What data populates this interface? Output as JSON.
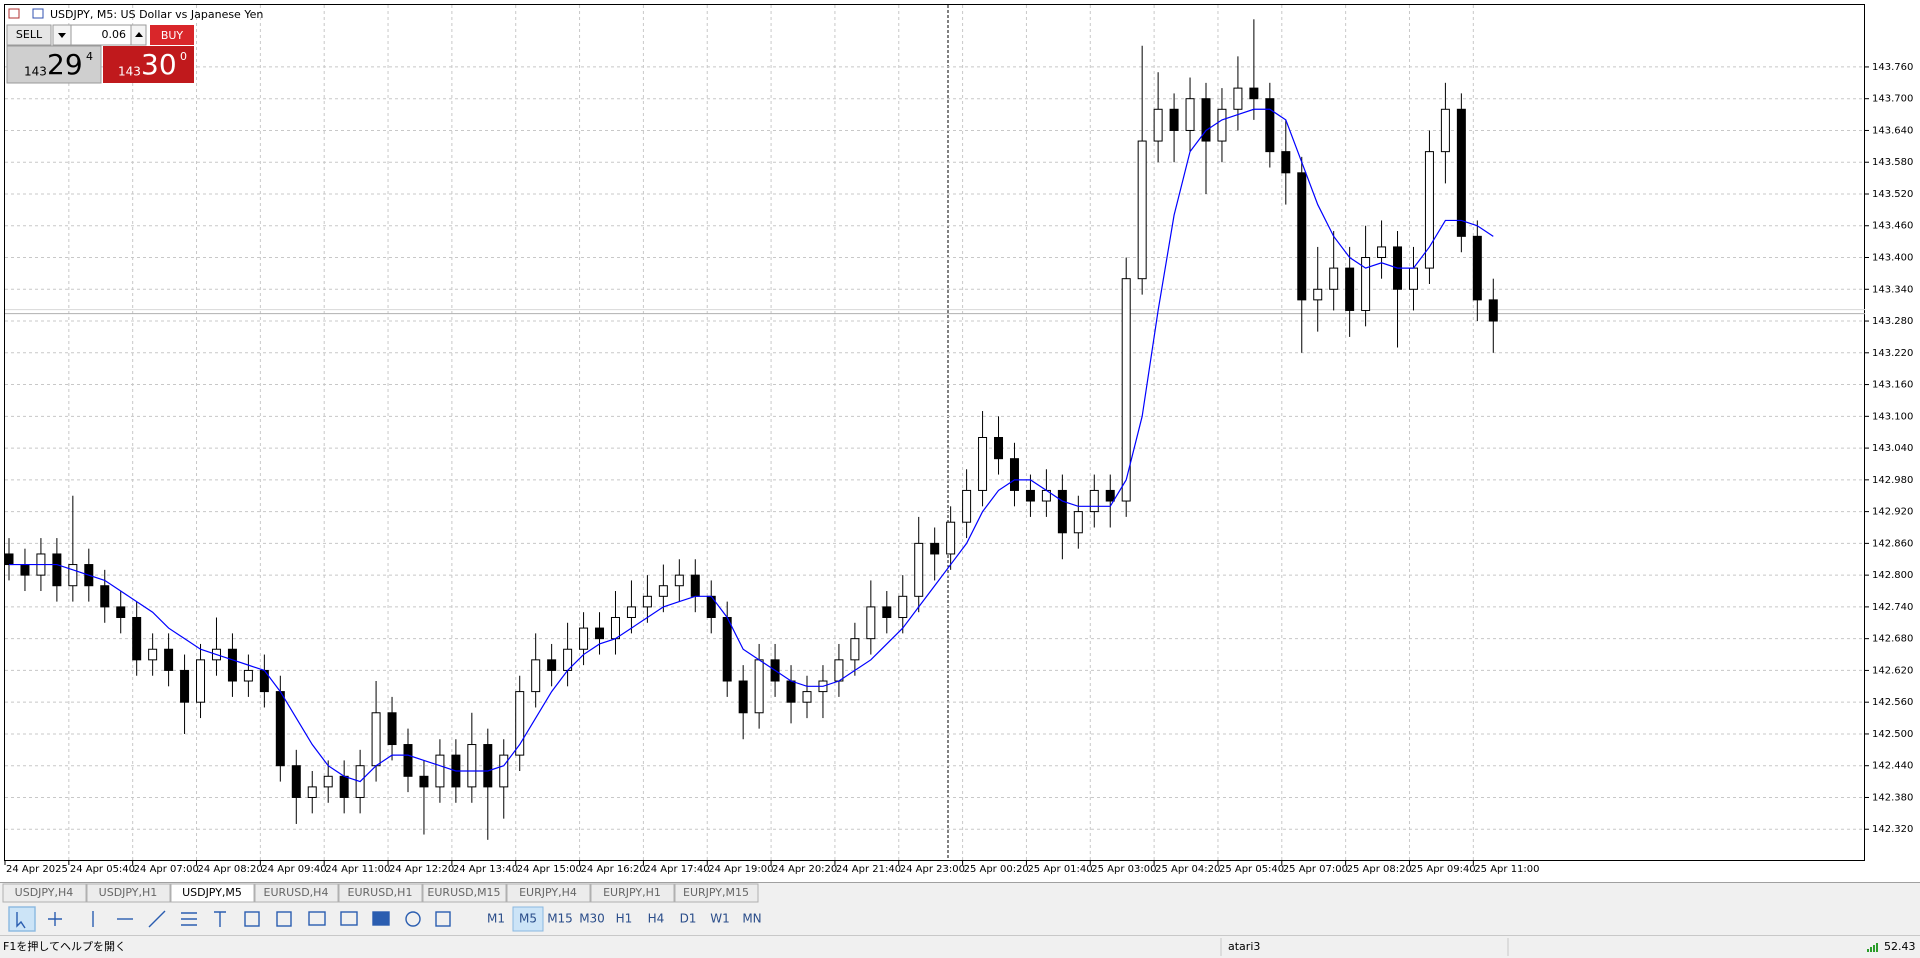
{
  "window": {
    "title": "USDJPY, M5:  US Dollar vs Japanese Yen"
  },
  "trade_panel": {
    "sell": "SELL",
    "buy": "BUY",
    "volume": "0.06",
    "sell_prefix": "143",
    "sell_main": "29",
    "sell_sup": "4",
    "buy_prefix": "143",
    "buy_main": "30",
    "buy_sup": "0"
  },
  "chart_data": {
    "type": "candlestick",
    "categories": [
      "24 Apr 2025",
      null,
      null,
      null,
      "24 Apr 05:40",
      null,
      null,
      null,
      "24 Apr 07:00",
      null,
      null,
      null,
      "24 Apr 08:20",
      null,
      null,
      null,
      "24 Apr 09:40",
      null,
      null,
      null,
      "24 Apr 11:00",
      null,
      null,
      null,
      "24 Apr 12:20",
      null,
      null,
      null,
      "24 Apr 13:40",
      null,
      null,
      null,
      "24 Apr 15:00",
      null,
      null,
      null,
      "24 Apr 16:20",
      null,
      null,
      null,
      "24 Apr 17:40",
      null,
      null,
      null,
      "24 Apr 19:00",
      null,
      null,
      null,
      "24 Apr 20:20",
      null,
      null,
      null,
      "24 Apr 21:40",
      null,
      null,
      null,
      "24 Apr 23:00",
      null,
      null,
      null,
      "25 Apr 00:20",
      null,
      null,
      null,
      "25 Apr 01:40",
      null,
      null,
      null,
      "25 Apr 03:00",
      null,
      null,
      null,
      "25 Apr 04:20",
      null,
      null,
      null,
      "25 Apr 05:40",
      null,
      null,
      null,
      "25 Apr 07:00",
      null,
      null,
      null,
      "25 Apr 08:20",
      null,
      null,
      null,
      "25 Apr 09:40",
      null,
      null,
      null,
      "25 Apr 11:00",
      null
    ],
    "open": [
      142.84,
      142.82,
      142.8,
      142.84,
      142.78,
      142.82,
      142.78,
      142.74,
      142.72,
      142.64,
      142.66,
      142.62,
      142.56,
      142.64,
      142.66,
      142.6,
      142.62,
      142.58,
      142.44,
      142.38,
      142.4,
      142.42,
      142.38,
      142.44,
      142.54,
      142.48,
      142.42,
      142.4,
      142.46,
      142.4,
      142.48,
      142.4,
      142.46,
      142.58,
      142.64,
      142.62,
      142.66,
      142.7,
      142.68,
      142.72,
      142.74,
      142.76,
      142.78,
      142.8,
      142.76,
      142.72,
      142.6,
      142.54,
      142.64,
      142.6,
      142.56,
      142.58,
      142.6,
      142.64,
      142.68,
      142.74,
      142.72,
      142.76,
      142.86,
      142.84,
      142.9,
      142.96,
      143.06,
      143.02,
      142.96,
      142.94,
      142.96,
      142.88,
      142.92,
      142.96,
      142.94,
      143.36,
      143.62,
      143.68,
      143.64,
      143.7,
      143.62,
      143.68,
      143.72,
      143.7,
      143.6,
      143.56,
      143.32,
      143.34,
      143.38,
      143.3,
      143.4,
      143.42,
      143.34,
      143.38,
      143.6,
      143.68,
      143.44,
      143.32
    ],
    "high": [
      142.87,
      142.85,
      142.87,
      142.87,
      142.95,
      142.85,
      142.81,
      142.77,
      142.75,
      142.69,
      142.69,
      142.65,
      142.67,
      142.72,
      142.69,
      142.65,
      142.65,
      142.61,
      142.47,
      142.43,
      142.45,
      142.45,
      142.47,
      142.6,
      142.57,
      142.51,
      142.45,
      142.49,
      142.49,
      142.54,
      142.51,
      142.49,
      142.61,
      142.69,
      142.67,
      142.71,
      142.73,
      142.73,
      142.77,
      142.79,
      142.8,
      142.82,
      142.83,
      142.83,
      142.79,
      142.75,
      142.63,
      142.67,
      142.67,
      142.63,
      142.61,
      142.63,
      142.67,
      142.71,
      142.79,
      142.77,
      142.8,
      142.91,
      142.89,
      142.93,
      143.0,
      143.11,
      143.1,
      143.05,
      142.99,
      143.0,
      142.99,
      142.95,
      142.99,
      142.99,
      143.4,
      143.8,
      143.75,
      143.71,
      143.74,
      143.73,
      143.72,
      143.78,
      143.85,
      143.73,
      143.66,
      143.59,
      143.42,
      143.45,
      143.42,
      143.46,
      143.47,
      143.45,
      143.42,
      143.64,
      143.73,
      143.71,
      143.47,
      143.36
    ],
    "low": [
      142.79,
      142.77,
      142.77,
      142.75,
      142.75,
      142.75,
      142.71,
      142.69,
      142.61,
      142.61,
      142.59,
      142.5,
      142.53,
      142.61,
      142.57,
      142.57,
      142.55,
      142.41,
      142.33,
      142.35,
      142.37,
      142.35,
      142.35,
      142.41,
      142.45,
      142.39,
      142.31,
      142.37,
      142.37,
      142.37,
      142.3,
      142.34,
      142.43,
      142.55,
      142.59,
      142.59,
      142.63,
      142.65,
      142.65,
      142.69,
      142.71,
      142.73,
      142.75,
      142.73,
      142.69,
      142.57,
      142.49,
      142.51,
      142.57,
      142.52,
      142.53,
      142.53,
      142.57,
      142.61,
      142.65,
      142.69,
      142.69,
      142.73,
      142.79,
      142.81,
      142.87,
      142.93,
      142.99,
      142.93,
      142.91,
      142.91,
      142.83,
      142.85,
      142.89,
      142.89,
      142.91,
      143.33,
      143.58,
      143.58,
      143.6,
      143.52,
      143.58,
      143.64,
      143.66,
      143.57,
      143.5,
      143.22,
      143.26,
      143.3,
      143.25,
      143.27,
      143.36,
      143.23,
      143.3,
      143.35,
      143.54,
      143.41,
      143.28,
      143.22
    ],
    "close": [
      142.82,
      142.8,
      142.84,
      142.78,
      142.82,
      142.78,
      142.74,
      142.72,
      142.64,
      142.66,
      142.62,
      142.56,
      142.64,
      142.66,
      142.6,
      142.62,
      142.58,
      142.44,
      142.38,
      142.4,
      142.42,
      142.38,
      142.44,
      142.54,
      142.48,
      142.42,
      142.4,
      142.46,
      142.4,
      142.48,
      142.4,
      142.46,
      142.58,
      142.64,
      142.62,
      142.66,
      142.7,
      142.68,
      142.72,
      142.74,
      142.76,
      142.78,
      142.8,
      142.76,
      142.72,
      142.6,
      142.54,
      142.64,
      142.6,
      142.56,
      142.58,
      142.6,
      142.64,
      142.68,
      142.74,
      142.72,
      142.76,
      142.86,
      142.84,
      142.9,
      142.96,
      143.06,
      143.02,
      142.96,
      142.94,
      142.96,
      142.88,
      142.92,
      142.96,
      142.94,
      143.36,
      143.62,
      143.68,
      143.64,
      143.7,
      143.62,
      143.68,
      143.72,
      143.7,
      143.6,
      143.56,
      143.32,
      143.34,
      143.38,
      143.3,
      143.4,
      143.42,
      143.34,
      143.38,
      143.6,
      143.68,
      143.44,
      143.32,
      143.28
    ],
    "ma": {
      "color": "#0000ff",
      "values": [
        142.82,
        142.82,
        142.82,
        142.82,
        142.81,
        142.8,
        142.79,
        142.77,
        142.75,
        142.73,
        142.7,
        142.68,
        142.66,
        142.65,
        142.64,
        142.63,
        142.62,
        142.58,
        142.53,
        142.48,
        142.44,
        142.42,
        142.41,
        142.44,
        142.46,
        142.46,
        142.45,
        142.44,
        142.43,
        142.43,
        142.43,
        142.44,
        142.48,
        142.53,
        142.58,
        142.62,
        142.65,
        142.67,
        142.68,
        142.7,
        142.72,
        142.74,
        142.75,
        142.76,
        142.76,
        142.72,
        142.66,
        142.64,
        142.62,
        142.6,
        142.59,
        142.59,
        142.6,
        142.62,
        142.64,
        142.67,
        142.7,
        142.74,
        142.78,
        142.82,
        142.86,
        142.92,
        142.96,
        142.98,
        142.98,
        142.96,
        142.94,
        142.93,
        142.93,
        142.93,
        142.98,
        143.1,
        143.3,
        143.48,
        143.6,
        143.64,
        143.66,
        143.67,
        143.68,
        143.68,
        143.66,
        143.58,
        143.5,
        143.44,
        143.4,
        143.38,
        143.39,
        143.38,
        143.38,
        143.42,
        143.47,
        143.47,
        143.46,
        143.44
      ]
    },
    "up_color": "#ffffff",
    "down_color": "#000000",
    "bid_line": 143.294,
    "ylim": [
      142.26,
      143.877
    ],
    "yticks": [
      {
        "value": 142.32,
        "label": "142.320"
      },
      {
        "value": 142.38,
        "label": "142.380"
      },
      {
        "value": 142.44,
        "label": "142.440"
      },
      {
        "value": 142.5,
        "label": "142.500"
      },
      {
        "value": 142.56,
        "label": "142.560"
      },
      {
        "value": 142.62,
        "label": "142.620"
      },
      {
        "value": 142.68,
        "label": "142.680"
      },
      {
        "value": 142.74,
        "label": "142.740"
      },
      {
        "value": 142.8,
        "label": "142.800"
      },
      {
        "value": 142.86,
        "label": "142.860"
      },
      {
        "value": 142.92,
        "label": "142.920"
      },
      {
        "value": 142.98,
        "label": "142.980"
      },
      {
        "value": 143.04,
        "label": "143.040"
      },
      {
        "value": 143.1,
        "label": "143.100"
      },
      {
        "value": 143.16,
        "label": "143.160"
      },
      {
        "value": 143.22,
        "label": "143.220"
      },
      {
        "value": 143.28,
        "label": "143.280"
      },
      {
        "value": 143.34,
        "label": "143.340"
      },
      {
        "value": 143.4,
        "label": "143.400"
      },
      {
        "value": 143.46,
        "label": "143.460"
      },
      {
        "value": 143.52,
        "label": "143.520"
      },
      {
        "value": 143.58,
        "label": "143.580"
      },
      {
        "value": 143.64,
        "label": "143.640"
      },
      {
        "value": 143.7,
        "label": "143.700"
      },
      {
        "value": 143.76,
        "label": "143.760"
      }
    ],
    "grid": true
  },
  "tabs": {
    "items": [
      "USDJPY,H4",
      "USDJPY,H1",
      "USDJPY,M5",
      "EURUSD,H4",
      "EURUSD,H1",
      "EURUSD,M15",
      "EURJPY,H4",
      "EURJPY,H1",
      "EURJPY,M15"
    ],
    "active": "USDJPY,M5"
  },
  "timeframes": {
    "items": [
      "M1",
      "M5",
      "M15",
      "M30",
      "H1",
      "H4",
      "D1",
      "W1",
      "MN"
    ],
    "active": "M5"
  },
  "status": {
    "help": "F1を押してヘルプを開く",
    "profile": "atari3",
    "ping": "52.43"
  }
}
